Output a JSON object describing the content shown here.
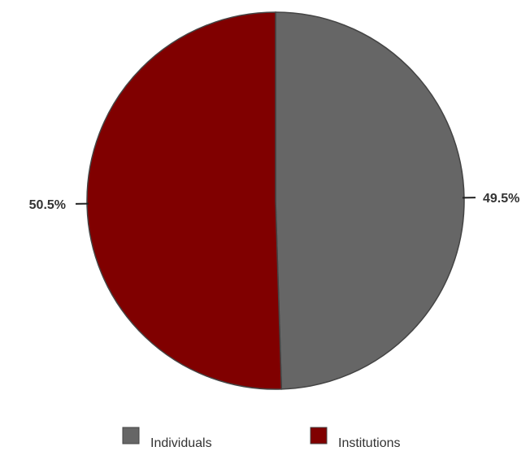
{
  "chart_data": {
    "type": "pie",
    "title": "",
    "slices": [
      {
        "label": "Individuals",
        "value": 49.5,
        "display": "49.5%",
        "color": "#666666"
      },
      {
        "label": "Institutions",
        "value": 50.5,
        "display": "50.5%",
        "color": "#800000"
      }
    ],
    "start_angle_deg": 0,
    "direction": "clockwise",
    "legend": {
      "placement": "bottom",
      "entries": [
        "Individuals",
        "Institutions"
      ]
    }
  }
}
